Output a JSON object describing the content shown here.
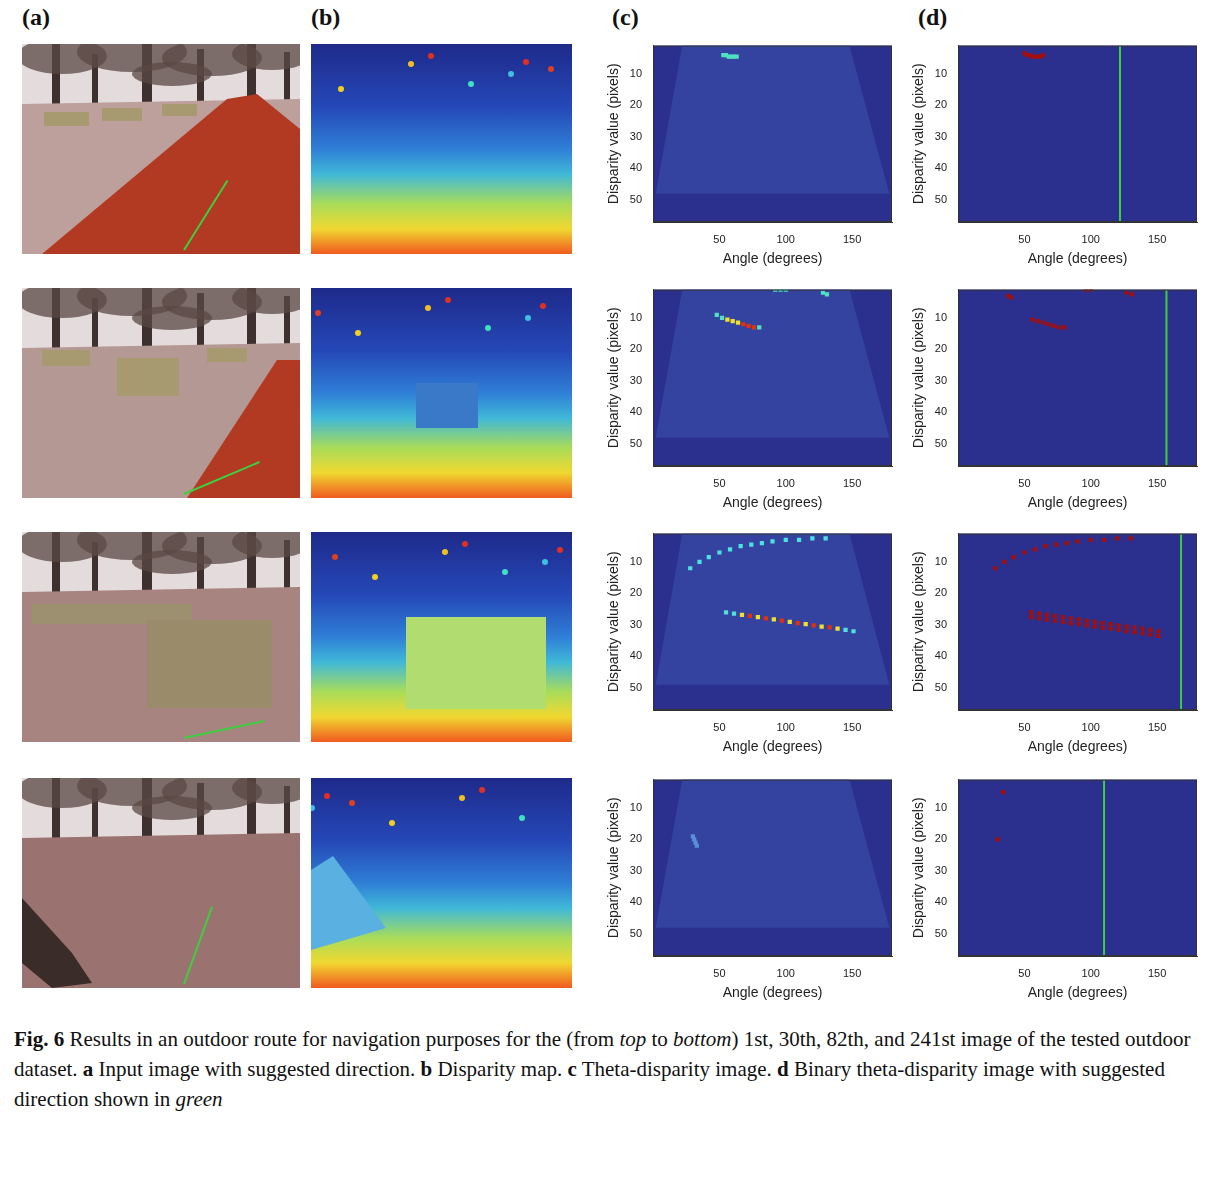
{
  "panel_letters": [
    "(a)",
    "(b)",
    "(c)",
    "(d)"
  ],
  "caption": [
    {
      "text": "Fig. 6",
      "style": "bold"
    },
    {
      "text": "  Results in an outdoor route for navigation purposes for the (from "
    },
    {
      "text": "top",
      "style": "italic"
    },
    {
      "text": " to "
    },
    {
      "text": "bottom",
      "style": "italic"
    },
    {
      "text": ") 1st, 30th, 82th, and 241st image of the tested outdoor dataset. "
    },
    {
      "text": "a",
      "style": "bold"
    },
    {
      "text": " Input image with suggested direction. "
    },
    {
      "text": "b",
      "style": "bold"
    },
    {
      "text": " Disparity map. "
    },
    {
      "text": "c",
      "style": "bold"
    },
    {
      "text": " Theta-disparity image. "
    },
    {
      "text": "d",
      "style": "bold"
    },
    {
      "text": " Binary theta-disparity image with suggested direction shown in "
    },
    {
      "text": "green",
      "style": "italic"
    }
  ],
  "chart_data": [
    {
      "type": "scatter",
      "x_label": "Angle (degrees)",
      "y_label": "Disparity value (pixels)",
      "xlim": [
        0,
        180
      ],
      "xticks": [
        50,
        100,
        150
      ],
      "ylim": [
        57,
        1
      ],
      "yticks": [
        10,
        20,
        30,
        40,
        50
      ],
      "grid": false,
      "marker": "square",
      "background_region": [
        [
          22,
          1
        ],
        [
          148,
          1
        ],
        [
          178,
          48
        ],
        [
          2,
          48
        ]
      ],
      "series": [
        {
          "color": "#4fe0c0",
          "x": [
            53,
            55,
            57,
            59,
            61,
            63
          ],
          "values": [
            4,
            4,
            4.5,
            4.5,
            4.5,
            4.5
          ]
        }
      ]
    },
    {
      "type": "scatter",
      "x_label": "Angle (degrees)",
      "y_label": "Disparity value (pixels)",
      "xlim": [
        0,
        180
      ],
      "xticks": [
        50,
        100,
        150
      ],
      "ylim": [
        57,
        1
      ],
      "yticks": [
        10,
        20,
        30,
        40,
        50
      ],
      "grid": false,
      "marker": "square",
      "series": [
        {
          "color": "#a01010",
          "x": [
            50,
            52,
            54,
            56,
            58,
            60,
            62,
            64
          ],
          "values": [
            3.5,
            4,
            4,
            4.5,
            4.5,
            4.5,
            4.5,
            4
          ]
        }
      ],
      "suggested_direction": {
        "value": 122,
        "color": "#3ecf3e"
      }
    },
    {
      "type": "scatter",
      "x_label": "Angle (degrees)",
      "y_label": "Disparity value (pixels)",
      "xlim": [
        0,
        180
      ],
      "xticks": [
        50,
        100,
        150
      ],
      "ylim": [
        57,
        1
      ],
      "yticks": [
        10,
        20,
        30,
        40,
        50
      ],
      "grid": false,
      "marker": "square",
      "background_region": [
        [
          22,
          1
        ],
        [
          148,
          1
        ],
        [
          178,
          48
        ],
        [
          2,
          48
        ]
      ],
      "series": [
        {
          "color": "#4fe0c0",
          "x": [
            48,
            52,
            80,
            92,
            96,
            100,
            128,
            131
          ],
          "values": [
            9,
            10,
            13,
            1,
            1,
            1,
            2,
            2.5
          ]
        },
        {
          "color": "#f0e030",
          "x": [
            56,
            60,
            64
          ],
          "values": [
            10.5,
            11,
            11.5
          ]
        },
        {
          "color": "#e03010",
          "x": [
            68,
            72,
            76
          ],
          "values": [
            12,
            12.5,
            13
          ]
        }
      ]
    },
    {
      "type": "scatter",
      "x_label": "Angle (degrees)",
      "y_label": "Disparity value (pixels)",
      "xlim": [
        0,
        180
      ],
      "xticks": [
        50,
        100,
        150
      ],
      "ylim": [
        57,
        1
      ],
      "yticks": [
        10,
        20,
        30,
        40,
        50
      ],
      "grid": false,
      "marker": "square",
      "series": [
        {
          "color": "#a01010",
          "x": [
            56,
            60,
            64,
            68,
            72,
            76,
            80,
            38,
            40,
            96,
            100,
            127,
            131
          ],
          "values": [
            10.5,
            11,
            11.5,
            12,
            12.5,
            13,
            13,
            3,
            3.5,
            1,
            1,
            2,
            2.5
          ]
        }
      ],
      "suggested_direction": {
        "value": 157,
        "color": "#3ecf3e"
      }
    },
    {
      "type": "scatter",
      "x_label": "Angle (degrees)",
      "y_label": "Disparity value (pixels)",
      "xlim": [
        0,
        180
      ],
      "xticks": [
        50,
        100,
        150
      ],
      "ylim": [
        57,
        1
      ],
      "yticks": [
        10,
        20,
        30,
        40,
        50
      ],
      "grid": false,
      "marker": "square",
      "background_region": [
        [
          22,
          1
        ],
        [
          148,
          1
        ],
        [
          178,
          49
        ],
        [
          2,
          49
        ]
      ],
      "series": [
        {
          "color": "#4fe0e0",
          "x": [
            28,
            35,
            42,
            50,
            58,
            66,
            74,
            82,
            90,
            100,
            110,
            120,
            130,
            55,
            61,
            145,
            151
          ],
          "values": [
            12,
            10,
            8.5,
            7,
            6,
            5,
            4.5,
            4,
            3.5,
            3,
            3,
            2.5,
            2.5,
            26,
            26.4,
            31.6,
            32
          ]
        },
        {
          "color": "#f0e030",
          "x": [
            67,
            79,
            91,
            103,
            115,
            127,
            139
          ],
          "values": [
            26.8,
            27.5,
            28.2,
            29,
            29.7,
            30.5,
            31.2
          ]
        },
        {
          "color": "#e03010",
          "x": [
            73,
            85,
            97,
            109,
            121,
            133
          ],
          "values": [
            27.1,
            27.9,
            28.6,
            29.4,
            30.1,
            30.8
          ]
        }
      ]
    },
    {
      "type": "scatter",
      "x_label": "Angle (degrees)",
      "y_label": "Disparity value (pixels)",
      "xlim": [
        0,
        180
      ],
      "xticks": [
        50,
        100,
        150
      ],
      "ylim": [
        57,
        1
      ],
      "yticks": [
        10,
        20,
        30,
        40,
        50
      ],
      "grid": false,
      "marker": "square",
      "series": [
        {
          "color": "#a01010",
          "x": [
            28,
            35,
            42,
            50,
            58,
            66,
            74,
            82,
            90,
            100,
            110,
            120,
            130
          ],
          "values": [
            12,
            10,
            8.5,
            7,
            6,
            5,
            4.5,
            4,
            3.5,
            3,
            3,
            2.5,
            2.5
          ]
        },
        {
          "color": "#a01010",
          "x": [
            55,
            61,
            67,
            73,
            79,
            85,
            91,
            97,
            103,
            109,
            115,
            121,
            127,
            133,
            139,
            145,
            151
          ],
          "values": [
            26,
            26.4,
            26.8,
            27.1,
            27.5,
            27.9,
            28.2,
            28.6,
            29,
            29.4,
            29.7,
            30.1,
            30.5,
            30.8,
            31.2,
            31.6,
            32
          ]
        },
        {
          "color": "#a01010",
          "x": [
            55,
            61,
            67,
            73,
            79,
            85,
            91,
            97,
            103,
            109,
            115,
            121,
            127,
            133,
            139,
            145,
            151
          ],
          "values": [
            27.5,
            27.9,
            28.3,
            28.6,
            29,
            29.4,
            29.7,
            30.1,
            30.5,
            30.9,
            31.2,
            31.6,
            32,
            32.3,
            32.7,
            33.1,
            33.5
          ]
        }
      ],
      "suggested_direction": {
        "value": 168,
        "color": "#3ecf3e"
      }
    },
    {
      "type": "scatter",
      "x_label": "Angle (degrees)",
      "y_label": "Disparity value (pixels)",
      "xlim": [
        0,
        180
      ],
      "xticks": [
        50,
        100,
        150
      ],
      "ylim": [
        57,
        1
      ],
      "yticks": [
        10,
        20,
        30,
        40,
        50
      ],
      "grid": false,
      "marker": "square",
      "background_region": [
        [
          22,
          1
        ],
        [
          148,
          1
        ],
        [
          178,
          48
        ],
        [
          2,
          48
        ]
      ],
      "series": [
        {
          "color": "#5a8fd8",
          "x": [
            30,
            31,
            32,
            33
          ],
          "values": [
            19,
            20,
            21,
            22
          ]
        }
      ]
    },
    {
      "type": "scatter",
      "x_label": "Angle (degrees)",
      "y_label": "Disparity value (pixels)",
      "xlim": [
        0,
        180
      ],
      "xticks": [
        50,
        100,
        150
      ],
      "ylim": [
        57,
        1
      ],
      "yticks": [
        10,
        20,
        30,
        40,
        50
      ],
      "grid": false,
      "marker": "square",
      "series": [
        {
          "color": "#a01010",
          "x": [
            34,
            30
          ],
          "values": [
            5,
            20
          ]
        }
      ],
      "suggested_direction": {
        "value": 110,
        "color": "#3ecf3e"
      }
    }
  ]
}
